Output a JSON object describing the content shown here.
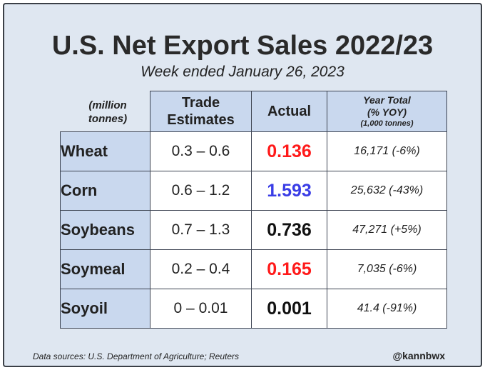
{
  "header": {
    "title": "U.S. Net Export Sales 2022/23",
    "subtitle": "Week ended January 26, 2023",
    "units_line1": "(million",
    "units_line2": "tonnes)"
  },
  "columns": {
    "trade_line1": "Trade",
    "trade_line2": "Estimates",
    "actual": "Actual",
    "year_line1": "Year Total",
    "year_line2": "(% YOY)",
    "year_line3": "(1,000 tonnes)"
  },
  "colors": {
    "red": "#ff1a1a",
    "blue": "#3a3de6",
    "black": "#111111",
    "header_bg": "#c9d8ee",
    "card_bg": "#dfe7f1"
  },
  "rows": [
    {
      "crop": "Wheat",
      "estimate": "0.3 – 0.6",
      "actual": "0.136",
      "actual_color": "#ff1a1a",
      "year_total": "16,171 (-6%)"
    },
    {
      "crop": "Corn",
      "estimate": "0.6 – 1.2",
      "actual": "1.593",
      "actual_color": "#3a3de6",
      "year_total": "25,632 (-43%)"
    },
    {
      "crop": "Soybeans",
      "estimate": "0.7 – 1.3",
      "actual": "0.736",
      "actual_color": "#111111",
      "year_total": "47,271 (+5%)"
    },
    {
      "crop": "Soymeal",
      "estimate": "0.2 – 0.4",
      "actual": "0.165",
      "actual_color": "#ff1a1a",
      "year_total": "7,035 (-6%)"
    },
    {
      "crop": "Soyoil",
      "estimate": "0 – 0.01",
      "actual": "0.001",
      "actual_color": "#111111",
      "year_total": "41.4 (-91%)"
    }
  ],
  "footer": {
    "source": "Data sources: U.S. Department of Agriculture; Reuters",
    "handle": "@kannbwx"
  }
}
